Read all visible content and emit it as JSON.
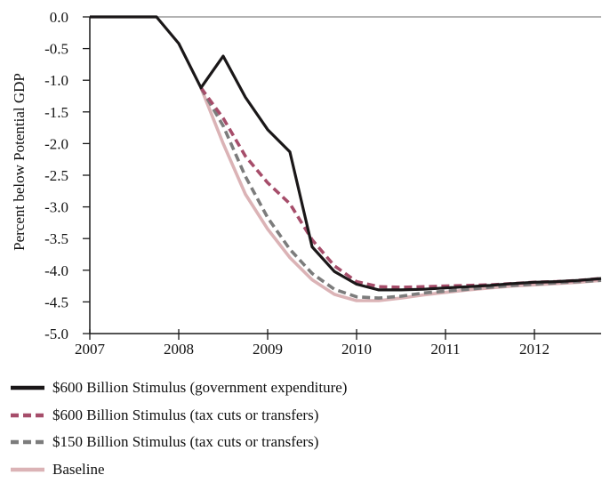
{
  "chart_data": {
    "type": "line",
    "title": "",
    "xlabel": "",
    "ylabel": "Percent below Potential GDP",
    "xlim": [
      2007,
      2012.75
    ],
    "ylim": [
      -5.0,
      0.0
    ],
    "x_ticks": [
      2007,
      2008,
      2009,
      2010,
      2011,
      2012
    ],
    "x_tick_labels": [
      "2007",
      "2008",
      "2009",
      "2010",
      "2011",
      "2012"
    ],
    "y_ticks": [
      0.0,
      -0.5,
      -1.0,
      -1.5,
      -2.0,
      -2.5,
      -3.0,
      -3.5,
      -4.0,
      -4.5,
      -5.0
    ],
    "y_tick_labels": [
      "0.0",
      "-0.5",
      "-1.0",
      "-1.5",
      "-2.0",
      "-2.5",
      "-3.0",
      "-3.5",
      "-4.0",
      "-4.5",
      "-5.0"
    ],
    "grid": false,
    "legend_position": "bottom",
    "series": [
      {
        "name": "$600 Billion Stimulus (government expenditure)",
        "color": "#1a1718",
        "dash": "solid",
        "x": [
          2007.0,
          2007.25,
          2007.5,
          2007.75,
          2008.0,
          2008.25,
          2008.5,
          2008.75,
          2009.0,
          2009.25,
          2009.5,
          2009.75,
          2010.0,
          2010.25,
          2010.5,
          2010.75,
          2011.0,
          2011.25,
          2011.5,
          2011.75,
          2012.0,
          2012.25,
          2012.5,
          2012.75
        ],
        "values": [
          0.0,
          0.0,
          0.0,
          0.0,
          -0.42,
          -1.12,
          -0.62,
          -1.27,
          -1.78,
          -2.13,
          -3.63,
          -4.02,
          -4.22,
          -4.31,
          -4.31,
          -4.3,
          -4.28,
          -4.26,
          -4.24,
          -4.21,
          -4.19,
          -4.18,
          -4.16,
          -4.13
        ]
      },
      {
        "name": "$600 Billion Stimulus (tax cuts or transfers)",
        "color": "#a64d6a",
        "dash": "dashed",
        "x": [
          2008.25,
          2008.5,
          2008.75,
          2009.0,
          2009.25,
          2009.5,
          2009.75,
          2010.0,
          2010.25,
          2010.5,
          2010.75,
          2011.0,
          2011.25,
          2011.5,
          2011.75,
          2012.0,
          2012.25,
          2012.5,
          2012.75
        ],
        "values": [
          -1.12,
          -1.6,
          -2.2,
          -2.62,
          -2.95,
          -3.52,
          -3.93,
          -4.18,
          -4.26,
          -4.27,
          -4.26,
          -4.25,
          -4.24,
          -4.23,
          -4.21,
          -4.19,
          -4.18,
          -4.16,
          -4.13
        ]
      },
      {
        "name": "$150 Billion Stimulus (tax cuts or transfers)",
        "color": "#7c7c7c",
        "dash": "dashed",
        "x": [
          2008.25,
          2008.5,
          2008.75,
          2009.0,
          2009.25,
          2009.5,
          2009.75,
          2010.0,
          2010.25,
          2010.5,
          2010.75,
          2011.0,
          2011.25,
          2011.5,
          2011.75,
          2012.0,
          2012.25,
          2012.5,
          2012.75
        ],
        "values": [
          -1.12,
          -1.72,
          -2.52,
          -3.17,
          -3.67,
          -4.05,
          -4.3,
          -4.42,
          -4.44,
          -4.41,
          -4.36,
          -4.33,
          -4.3,
          -4.27,
          -4.24,
          -4.22,
          -4.2,
          -4.18,
          -4.16
        ]
      },
      {
        "name": "Baseline",
        "color": "#dbb3b6",
        "dash": "solid",
        "x": [
          2008.25,
          2008.5,
          2008.75,
          2009.0,
          2009.25,
          2009.5,
          2009.75,
          2010.0,
          2010.25,
          2010.5,
          2010.75,
          2011.0,
          2011.25,
          2011.5,
          2011.75,
          2012.0,
          2012.25,
          2012.5,
          2012.75
        ],
        "values": [
          -1.12,
          -2.0,
          -2.8,
          -3.35,
          -3.8,
          -4.15,
          -4.38,
          -4.48,
          -4.48,
          -4.44,
          -4.39,
          -4.35,
          -4.31,
          -4.28,
          -4.25,
          -4.23,
          -4.21,
          -4.19,
          -4.16
        ]
      }
    ]
  }
}
